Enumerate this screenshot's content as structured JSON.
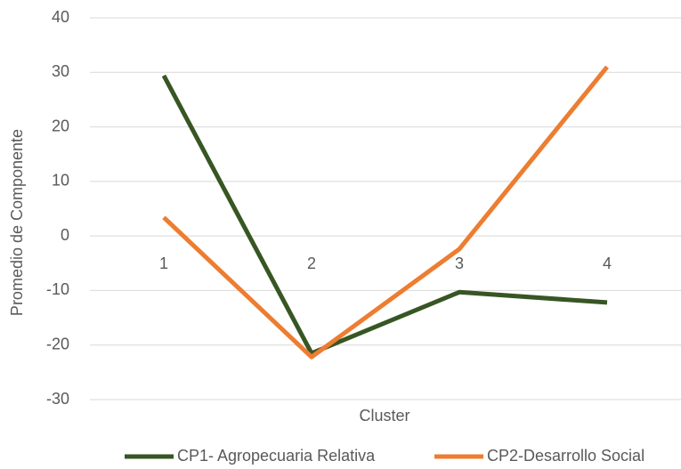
{
  "chart_data": {
    "type": "line",
    "x_label": "Cluster",
    "y_label": "Promedio de Componente",
    "categories": [
      "1",
      "2",
      "3",
      "4"
    ],
    "series": [
      {
        "name": "CP1- Agropecuaria Relativa",
        "color": "#375623",
        "values": [
          29.4,
          -21.5,
          -10.3,
          -12.2
        ]
      },
      {
        "name": "CP2-Desarrollo Social",
        "color": "#ed7d31",
        "values": [
          3.4,
          -22.2,
          -2.4,
          31.0
        ]
      }
    ],
    "ylim": [
      -30,
      40
    ],
    "yticks": [
      -30,
      -20,
      -10,
      0,
      10,
      20,
      30,
      40
    ],
    "grid": true,
    "legend": "bottom"
  }
}
